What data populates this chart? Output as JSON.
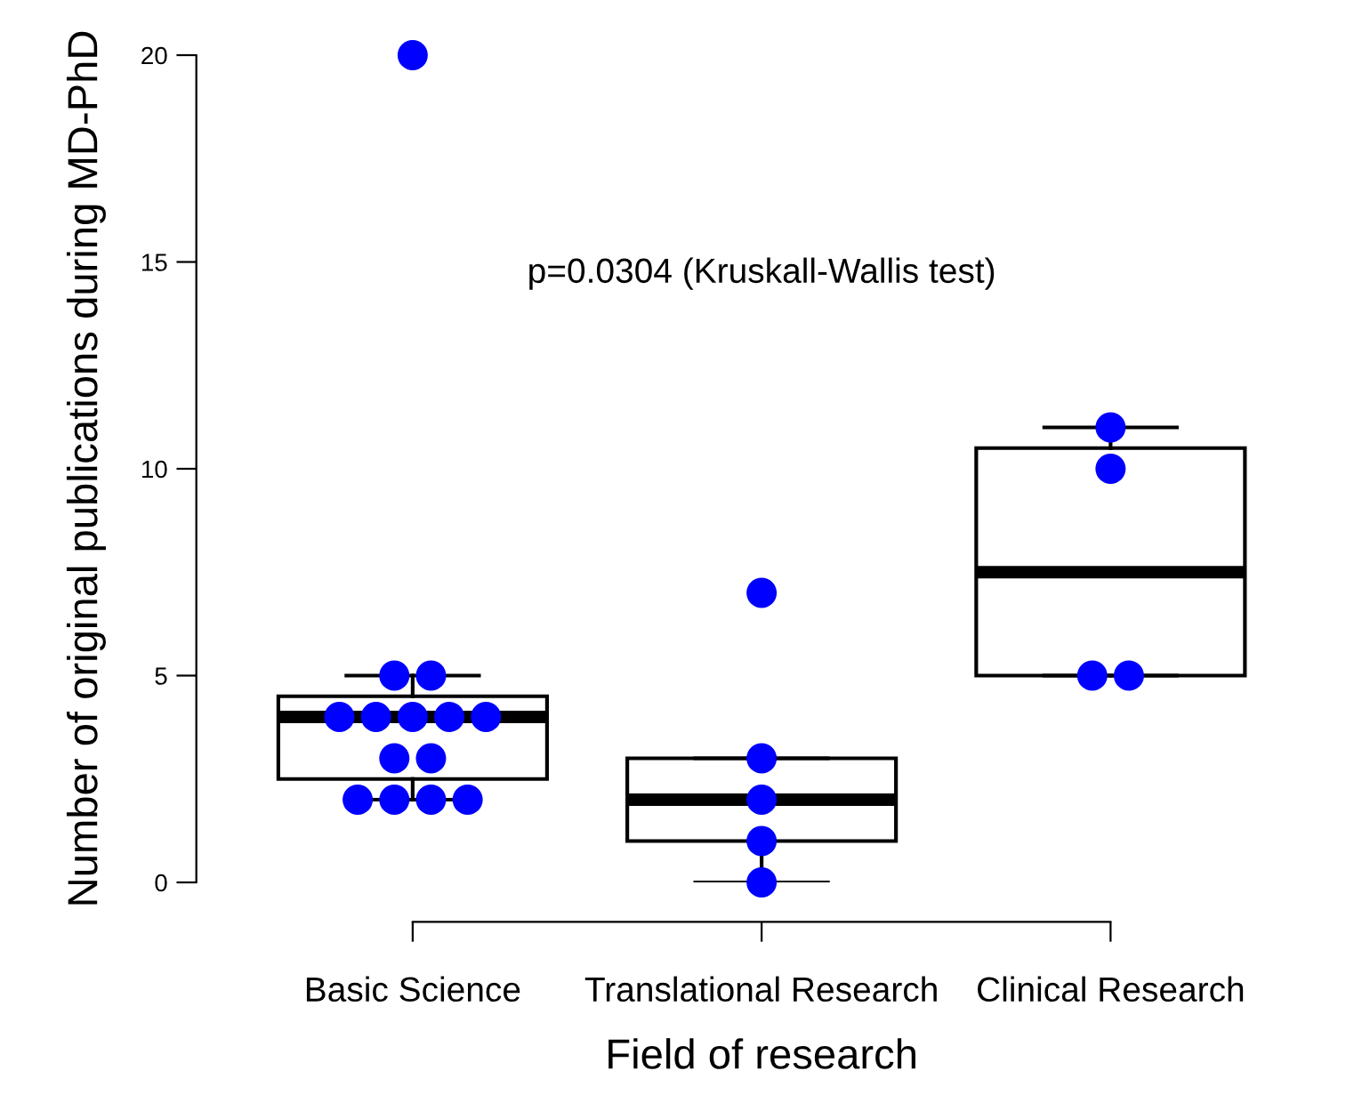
{
  "chart_data": {
    "type": "box",
    "xlabel": "Field of research",
    "ylabel": "Number of original publications during MD-PhD",
    "categories": [
      "Basic Science",
      "Translational Research",
      "Clinical Research"
    ],
    "boxes": [
      {
        "low": 2,
        "q1": 2.5,
        "median": 4,
        "q3": 4.5,
        "high": 5
      },
      {
        "low": 0,
        "q1": 1,
        "median": 2,
        "q3": 3,
        "high": 3
      },
      {
        "low": 5,
        "q1": 5,
        "median": 7.5,
        "q3": 10.5,
        "high": 11
      }
    ],
    "series": [
      {
        "type": "scatter",
        "color": "#0000ff",
        "marker": "circle",
        "x": [
          "Basic Science",
          "Basic Science",
          "Basic Science",
          "Basic Science",
          "Basic Science",
          "Basic Science",
          "Basic Science",
          "Basic Science",
          "Basic Science",
          "Basic Science",
          "Basic Science",
          "Basic Science",
          "Basic Science",
          "Basic Science",
          "Translational Research",
          "Translational Research",
          "Translational Research",
          "Translational Research",
          "Translational Research",
          "Clinical Research",
          "Clinical Research",
          "Clinical Research",
          "Clinical Research"
        ],
        "values": [
          20,
          5,
          5,
          4,
          4,
          4,
          4,
          4,
          3,
          3,
          2,
          2,
          2,
          2,
          7,
          3,
          2,
          1,
          0,
          11,
          10,
          5,
          5
        ]
      }
    ],
    "ylim": [
      0,
      20
    ],
    "yticks": [
      0,
      5,
      10,
      15,
      20
    ],
    "grid": false,
    "legend": false,
    "annotations": [
      "p=0.0304 (Kruskall-Wallis test)"
    ]
  }
}
